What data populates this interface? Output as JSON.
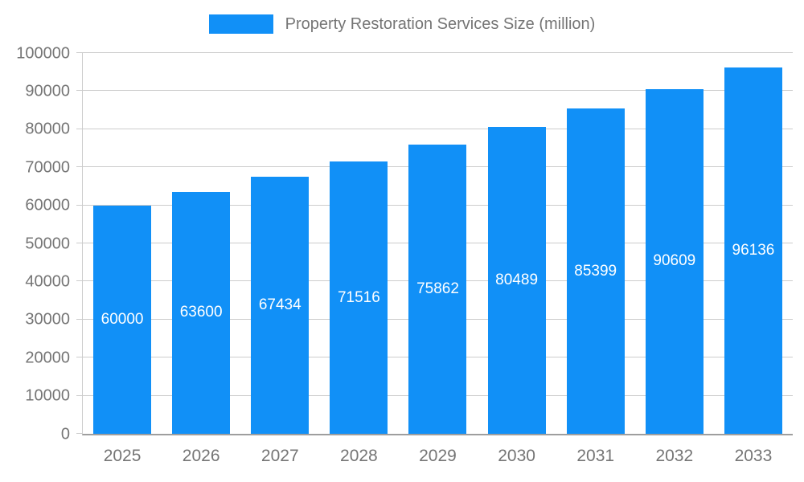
{
  "chart_data": {
    "type": "bar",
    "title": "Property Restoration Services Size (million)",
    "categories": [
      "2025",
      "2026",
      "2027",
      "2028",
      "2029",
      "2030",
      "2031",
      "2032",
      "2033"
    ],
    "values": [
      60000,
      63600,
      67434,
      71516,
      75862,
      80489,
      85399,
      90609,
      96136
    ],
    "xlabel": "",
    "ylabel": "",
    "ylim": [
      0,
      100000
    ],
    "ytick_step": 10000,
    "grid": true,
    "legend_position": "top",
    "bar_color": "#1190f7",
    "value_label_color": "#ffffff",
    "axis_text_color": "#757575",
    "gridline_color": "#cccccc"
  }
}
